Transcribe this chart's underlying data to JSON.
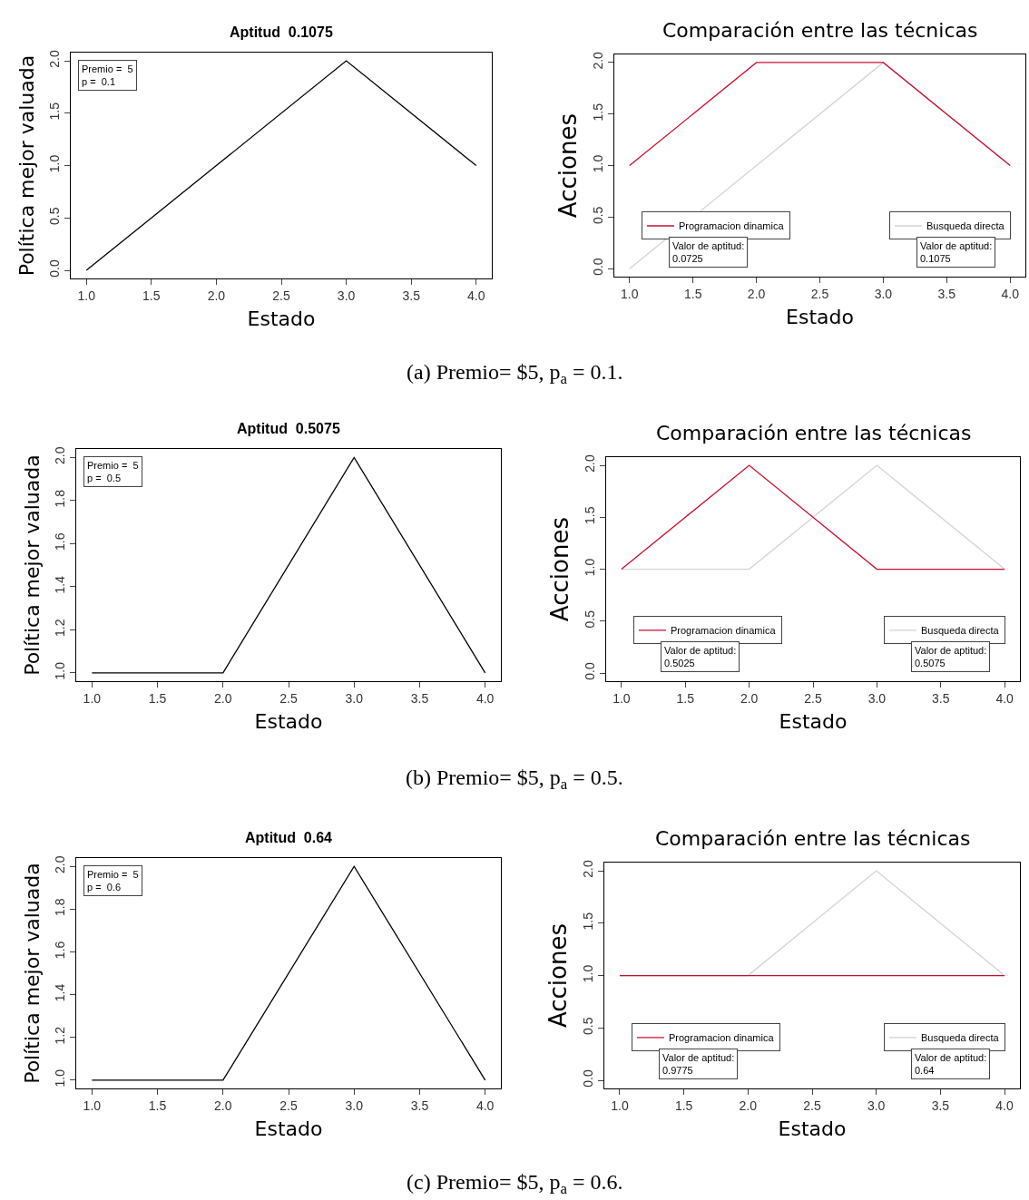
{
  "chart_data": [
    {
      "type": "line",
      "title": "Aptitud  0.1075",
      "xlabel": "Estado",
      "ylabel": "Política mejor valuada",
      "x": [
        1,
        2,
        3,
        4
      ],
      "series": [
        {
          "color": "#000000",
          "values": [
            0,
            1,
            2,
            1
          ]
        }
      ],
      "xlim": [
        0.88,
        4.12
      ],
      "ylim": [
        -0.08,
        2.08
      ],
      "xticks": [
        {
          "value": 1,
          "label": "1.0"
        },
        {
          "value": 1.5,
          "label": "1.5"
        },
        {
          "value": 2,
          "label": "2.0"
        },
        {
          "value": 2.5,
          "label": "2.5"
        },
        {
          "value": 3,
          "label": "3.0"
        },
        {
          "value": 3.5,
          "label": "3.5"
        },
        {
          "value": 4,
          "label": "4.0"
        }
      ],
      "yticks": [
        {
          "value": 0,
          "label": "0.0"
        },
        {
          "value": 0.5,
          "label": "0.5"
        },
        {
          "value": 1,
          "label": "1.0"
        },
        {
          "value": 1.5,
          "label": "1.5"
        },
        {
          "value": 2,
          "label": "2.0"
        }
      ],
      "annotations": [
        "Premio =  5\np =  0.1",
        "(a) Premio= $5, p$_{a}$ = 0.1."
      ]
    },
    {
      "type": "line",
      "title": "Comparación entre las técnicas",
      "xlabel": "Estado",
      "ylabel": "Acciones",
      "x": [
        1,
        2,
        3,
        4
      ],
      "series": [
        {
          "name": "Busqueda directa",
          "color": "#d3d3d3",
          "values": [
            0,
            1,
            2,
            1
          ]
        },
        {
          "name": "Programacion dinamica",
          "color": "#c8102e",
          "values": [
            1,
            2,
            2,
            1
          ]
        }
      ],
      "xlim": [
        0.88,
        4.12
      ],
      "ylim": [
        -0.08,
        2.08
      ],
      "xticks": [
        {
          "value": 1,
          "label": "1.0"
        },
        {
          "value": 1.5,
          "label": "1.5"
        },
        {
          "value": 2,
          "label": "2.0"
        },
        {
          "value": 2.5,
          "label": "2.5"
        },
        {
          "value": 3,
          "label": "3.0"
        },
        {
          "value": 3.5,
          "label": "3.5"
        },
        {
          "value": 4,
          "label": "4.0"
        }
      ],
      "yticks": [
        {
          "value": 0,
          "label": "0.0"
        },
        {
          "value": 0.5,
          "label": "0.5"
        },
        {
          "value": 1,
          "label": "1.0"
        },
        {
          "value": 1.5,
          "label": "1.5"
        },
        {
          "value": 2,
          "label": "2.0"
        }
      ],
      "legend": "bottom",
      "annotations": [
        "Valor de aptitud:\n0.1075",
        "Valor de aptitud:\n0.0725"
      ]
    },
    {
      "type": "line",
      "title": "Aptitud  0.5075",
      "xlabel": "Estado",
      "ylabel": "Política mejor valuada",
      "x": [
        1,
        2,
        3,
        4
      ],
      "series": [
        {
          "color": "#000000",
          "values": [
            1,
            1,
            2,
            1
          ]
        }
      ],
      "xlim": [
        0.88,
        4.12
      ],
      "ylim": [
        0.96,
        2.04
      ],
      "xticks": [
        {
          "value": 1,
          "label": "1.0"
        },
        {
          "value": 1.5,
          "label": "1.5"
        },
        {
          "value": 2,
          "label": "2.0"
        },
        {
          "value": 2.5,
          "label": "2.5"
        },
        {
          "value": 3,
          "label": "3.0"
        },
        {
          "value": 3.5,
          "label": "3.5"
        },
        {
          "value": 4,
          "label": "4.0"
        }
      ],
      "yticks": [
        {
          "value": 1,
          "label": "1.0"
        },
        {
          "value": 1.2,
          "label": "1.2"
        },
        {
          "value": 1.4,
          "label": "1.4"
        },
        {
          "value": 1.6,
          "label": "1.6"
        },
        {
          "value": 1.8,
          "label": "1.8"
        },
        {
          "value": 2,
          "label": "2.0"
        }
      ],
      "annotations": [
        "Premio =  5\np =  0.5",
        "(b) Premio= $5, p$_{a}$ = 0.5."
      ]
    },
    {
      "type": "line",
      "title": "Comparación entre las técnicas",
      "xlabel": "Estado",
      "ylabel": "Acciones",
      "x": [
        1,
        2,
        3,
        4
      ],
      "series": [
        {
          "name": "Busqueda directa",
          "color": "#d3d3d3",
          "values": [
            1,
            1,
            2,
            1
          ]
        },
        {
          "name": "Programacion dinamica",
          "color": "#c8102e",
          "values": [
            1,
            2,
            1,
            1
          ]
        }
      ],
      "xlim": [
        0.88,
        4.12
      ],
      "ylim": [
        -0.08,
        2.08
      ],
      "xticks": [
        {
          "value": 1,
          "label": "1.0"
        },
        {
          "value": 1.5,
          "label": "1.5"
        },
        {
          "value": 2,
          "label": "2.0"
        },
        {
          "value": 2.5,
          "label": "2.5"
        },
        {
          "value": 3,
          "label": "3.0"
        },
        {
          "value": 3.5,
          "label": "3.5"
        },
        {
          "value": 4,
          "label": "4.0"
        }
      ],
      "yticks": [
        {
          "value": 0,
          "label": "0.0"
        },
        {
          "value": 0.5,
          "label": "0.5"
        },
        {
          "value": 1,
          "label": "1.0"
        },
        {
          "value": 1.5,
          "label": "1.5"
        },
        {
          "value": 2,
          "label": "2.0"
        }
      ],
      "legend": "bottom",
      "annotations": [
        "Valor de aptitud:\n0.5075",
        "Valor de aptitud:\n0.5025"
      ]
    },
    {
      "type": "line",
      "title": "Aptitud  0.64",
      "xlabel": "Estado",
      "ylabel": "Política mejor valuada",
      "x": [
        1,
        2,
        3,
        4
      ],
      "series": [
        {
          "color": "#000000",
          "values": [
            1,
            1,
            2,
            1
          ]
        }
      ],
      "xlim": [
        0.88,
        4.12
      ],
      "ylim": [
        0.96,
        2.04
      ],
      "xticks": [
        {
          "value": 1,
          "label": "1.0"
        },
        {
          "value": 1.5,
          "label": "1.5"
        },
        {
          "value": 2,
          "label": "2.0"
        },
        {
          "value": 2.5,
          "label": "2.5"
        },
        {
          "value": 3,
          "label": "3.0"
        },
        {
          "value": 3.5,
          "label": "3.5"
        },
        {
          "value": 4,
          "label": "4.0"
        }
      ],
      "yticks": [
        {
          "value": 1,
          "label": "1.0"
        },
        {
          "value": 1.2,
          "label": "1.2"
        },
        {
          "value": 1.4,
          "label": "1.4"
        },
        {
          "value": 1.6,
          "label": "1.6"
        },
        {
          "value": 1.8,
          "label": "1.8"
        },
        {
          "value": 2,
          "label": "2.0"
        }
      ],
      "annotations": [
        "Premio =  5\np =  0.6",
        "(c) Premio= $5, p$_{a}$ = 0.6."
      ]
    },
    {
      "type": "line",
      "title": "Comparación entre las técnicas",
      "xlabel": "Estado",
      "ylabel": "Acciones",
      "x": [
        1,
        2,
        3,
        4
      ],
      "series": [
        {
          "name": "Busqueda directa",
          "color": "#d3d3d3",
          "values": [
            1,
            1,
            2,
            1
          ]
        },
        {
          "name": "Programacion dinamica",
          "color": "#c8102e",
          "values": [
            1,
            1,
            1,
            1
          ]
        }
      ],
      "xlim": [
        0.88,
        4.12
      ],
      "ylim": [
        -0.08,
        2.08
      ],
      "xticks": [
        {
          "value": 1,
          "label": "1.0"
        },
        {
          "value": 1.5,
          "label": "1.5"
        },
        {
          "value": 2,
          "label": "2.0"
        },
        {
          "value": 2.5,
          "label": "2.5"
        },
        {
          "value": 3,
          "label": "3.0"
        },
        {
          "value": 3.5,
          "label": "3.5"
        },
        {
          "value": 4,
          "label": "4.0"
        }
      ],
      "yticks": [
        {
          "value": 0,
          "label": "0.0"
        },
        {
          "value": 0.5,
          "label": "0.5"
        },
        {
          "value": 1,
          "label": "1.0"
        },
        {
          "value": 1.5,
          "label": "1.5"
        },
        {
          "value": 2,
          "label": "2.0"
        }
      ],
      "legend": "bottom",
      "annotations": [
        "Valor de aptitud:\n0.64",
        "Valor de aptitud:\n0.9775"
      ]
    }
  ]
}
